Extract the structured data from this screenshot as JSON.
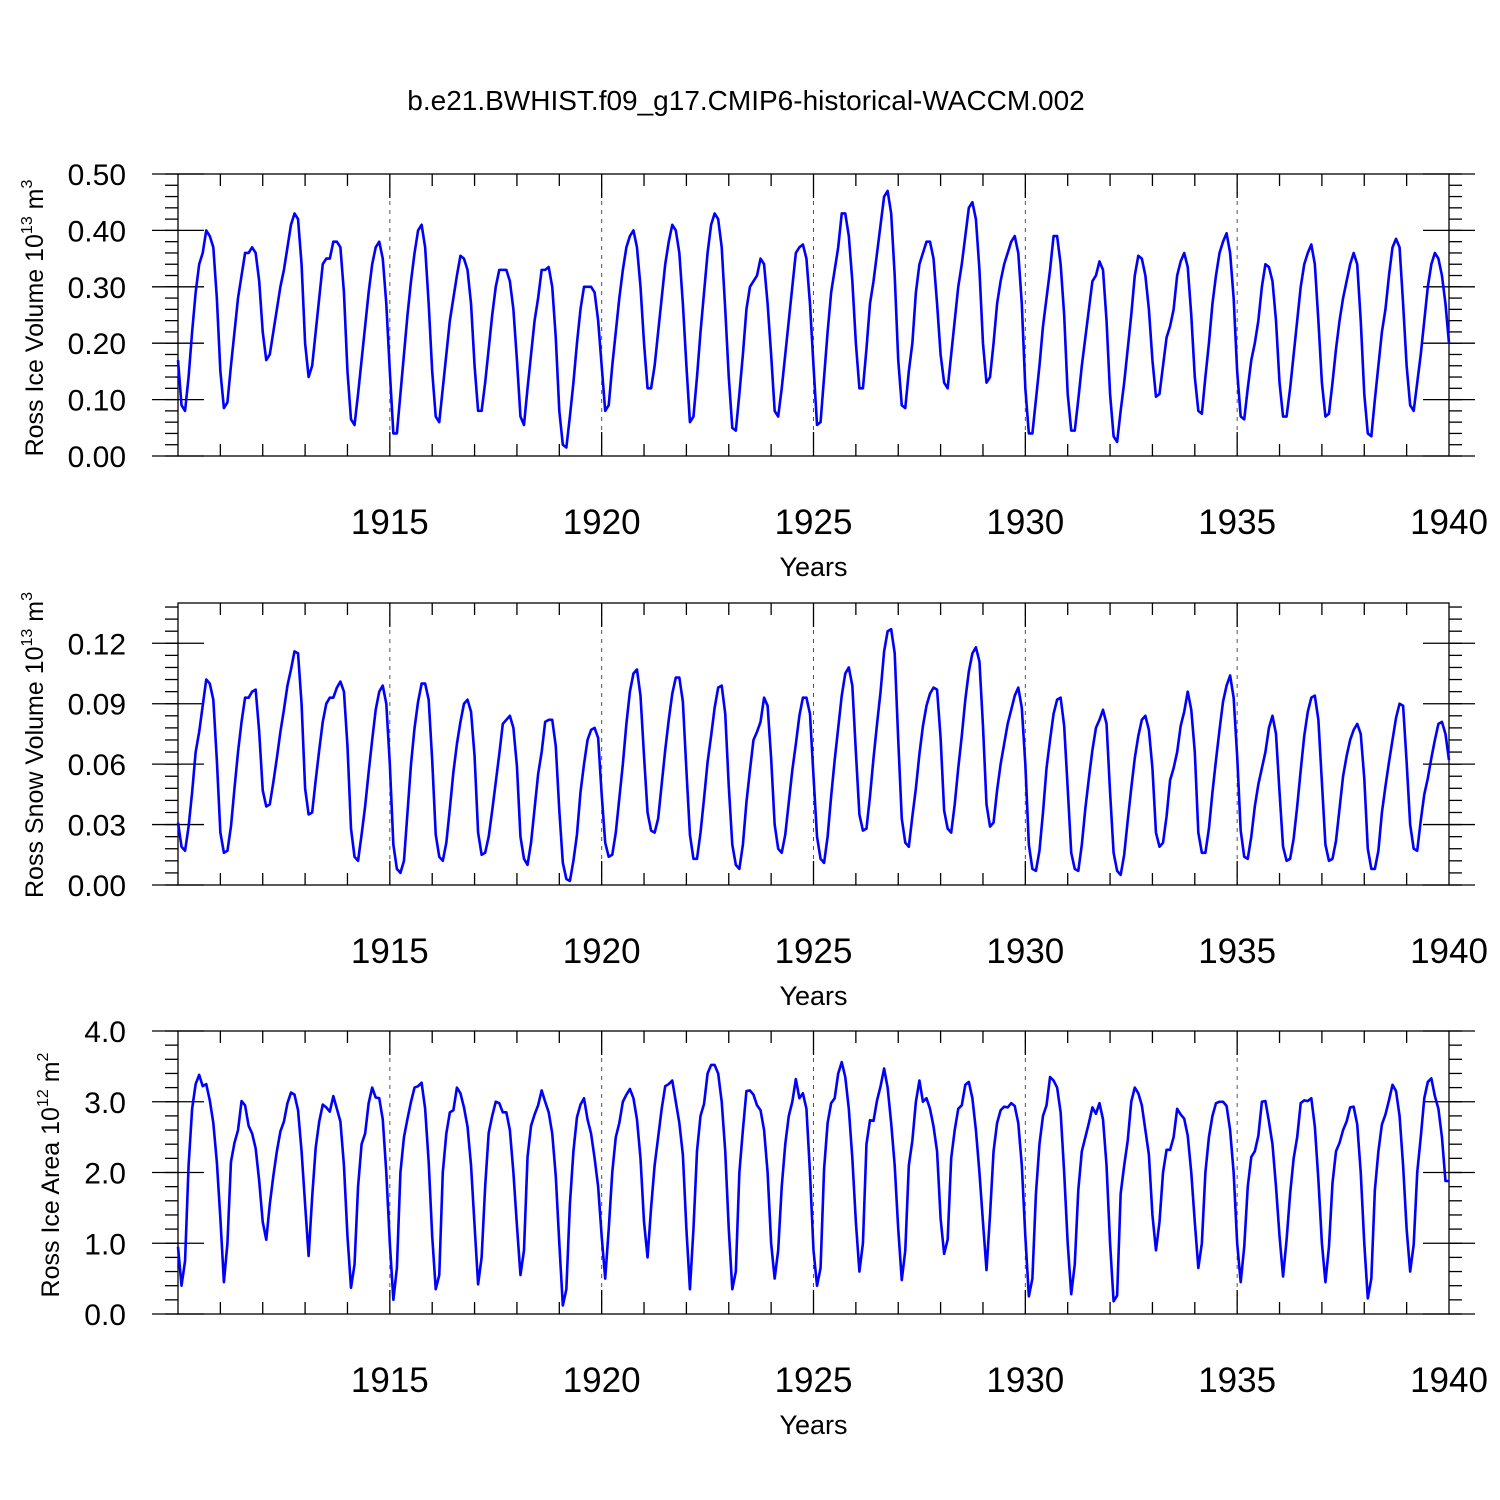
{
  "figure": {
    "title": "b.e21.BWHIST.f09_g17.CMIP6-historical-WACCM.002"
  },
  "chart_data": [
    {
      "type": "line",
      "name": "ross-ice-volume",
      "ylabel": "Ross Ice Volume 10",
      "ylabel_exp": "13",
      "ylabel_unit": "m",
      "ylabel_unit_exp": "3",
      "xlabel": "Years",
      "xlim": [
        1910,
        1940
      ],
      "ylim": [
        0,
        0.5
      ],
      "yticks": [
        "0.00",
        "0.10",
        "0.20",
        "0.30",
        "0.40",
        "0.50"
      ],
      "ytick_values": [
        0,
        0.1,
        0.2,
        0.3,
        0.4,
        0.5
      ],
      "xticks": [
        "1915",
        "1920",
        "1925",
        "1930",
        "1935",
        "1940"
      ],
      "xtick_values": [
        1915,
        1920,
        1925,
        1930,
        1935,
        1940
      ],
      "grid_x": [
        1915,
        1920,
        1925,
        1930,
        1935
      ],
      "color": "#0000ff",
      "start_year": 1910,
      "months_per_year": 12,
      "values": [
        0.17,
        0.09,
        0.08,
        0.14,
        0.22,
        0.29,
        0.34,
        0.36,
        0.4,
        0.39,
        0.37,
        0.28,
        0.15,
        0.085,
        0.095,
        0.16,
        0.22,
        0.28,
        0.32,
        0.36,
        0.36,
        0.37,
        0.36,
        0.31,
        0.22,
        0.17,
        0.18,
        0.22,
        0.26,
        0.3,
        0.33,
        0.37,
        0.41,
        0.43,
        0.42,
        0.34,
        0.2,
        0.14,
        0.16,
        0.22,
        0.28,
        0.34,
        0.35,
        0.35,
        0.38,
        0.38,
        0.37,
        0.29,
        0.15,
        0.065,
        0.055,
        0.11,
        0.17,
        0.23,
        0.29,
        0.34,
        0.37,
        0.38,
        0.35,
        0.27,
        0.15,
        0.04,
        0.04,
        0.11,
        0.18,
        0.25,
        0.31,
        0.36,
        0.4,
        0.41,
        0.37,
        0.27,
        0.15,
        0.07,
        0.06,
        0.12,
        0.18,
        0.24,
        0.28,
        0.32,
        0.355,
        0.35,
        0.33,
        0.27,
        0.16,
        0.08,
        0.08,
        0.13,
        0.19,
        0.25,
        0.3,
        0.33,
        0.33,
        0.33,
        0.31,
        0.26,
        0.17,
        0.07,
        0.055,
        0.12,
        0.18,
        0.24,
        0.28,
        0.33,
        0.33,
        0.335,
        0.3,
        0.21,
        0.08,
        0.02,
        0.015,
        0.07,
        0.13,
        0.2,
        0.26,
        0.3,
        0.3,
        0.3,
        0.29,
        0.24,
        0.16,
        0.08,
        0.09,
        0.16,
        0.22,
        0.28,
        0.33,
        0.37,
        0.39,
        0.4,
        0.37,
        0.3,
        0.2,
        0.12,
        0.12,
        0.16,
        0.22,
        0.28,
        0.34,
        0.38,
        0.41,
        0.4,
        0.36,
        0.27,
        0.16,
        0.06,
        0.07,
        0.14,
        0.22,
        0.29,
        0.36,
        0.41,
        0.43,
        0.42,
        0.37,
        0.26,
        0.14,
        0.05,
        0.045,
        0.11,
        0.18,
        0.26,
        0.3,
        0.31,
        0.32,
        0.35,
        0.34,
        0.27,
        0.18,
        0.08,
        0.07,
        0.12,
        0.18,
        0.24,
        0.3,
        0.36,
        0.37,
        0.375,
        0.35,
        0.27,
        0.16,
        0.055,
        0.06,
        0.14,
        0.22,
        0.29,
        0.33,
        0.37,
        0.43,
        0.43,
        0.39,
        0.31,
        0.2,
        0.12,
        0.12,
        0.19,
        0.27,
        0.31,
        0.36,
        0.41,
        0.46,
        0.47,
        0.43,
        0.32,
        0.17,
        0.09,
        0.085,
        0.15,
        0.2,
        0.29,
        0.34,
        0.36,
        0.38,
        0.38,
        0.35,
        0.27,
        0.18,
        0.13,
        0.12,
        0.18,
        0.24,
        0.3,
        0.34,
        0.39,
        0.44,
        0.45,
        0.42,
        0.33,
        0.2,
        0.13,
        0.14,
        0.2,
        0.27,
        0.31,
        0.34,
        0.36,
        0.38,
        0.39,
        0.36,
        0.27,
        0.12,
        0.04,
        0.04,
        0.1,
        0.16,
        0.23,
        0.28,
        0.33,
        0.39,
        0.39,
        0.34,
        0.25,
        0.11,
        0.045,
        0.045,
        0.1,
        0.16,
        0.21,
        0.26,
        0.31,
        0.32,
        0.345,
        0.33,
        0.24,
        0.11,
        0.035,
        0.025,
        0.08,
        0.13,
        0.19,
        0.25,
        0.32,
        0.355,
        0.35,
        0.32,
        0.26,
        0.17,
        0.105,
        0.11,
        0.16,
        0.21,
        0.23,
        0.26,
        0.32,
        0.345,
        0.36,
        0.335,
        0.25,
        0.14,
        0.08,
        0.075,
        0.14,
        0.2,
        0.27,
        0.32,
        0.36,
        0.38,
        0.395,
        0.36,
        0.28,
        0.15,
        0.07,
        0.065,
        0.12,
        0.17,
        0.2,
        0.24,
        0.3,
        0.34,
        0.335,
        0.31,
        0.24,
        0.13,
        0.07,
        0.07,
        0.12,
        0.18,
        0.24,
        0.3,
        0.34,
        0.36,
        0.375,
        0.34,
        0.24,
        0.13,
        0.07,
        0.075,
        0.13,
        0.19,
        0.24,
        0.28,
        0.31,
        0.34,
        0.36,
        0.34,
        0.24,
        0.11,
        0.04,
        0.035,
        0.1,
        0.16,
        0.22,
        0.26,
        0.32,
        0.37,
        0.385,
        0.37,
        0.27,
        0.16,
        0.09,
        0.08,
        0.13,
        0.18,
        0.24,
        0.3,
        0.34,
        0.36,
        0.35,
        0.32,
        0.27,
        0.2
      ]
    },
    {
      "type": "line",
      "name": "ross-snow-volume",
      "ylabel": "Ross Snow Volume 10",
      "ylabel_exp": "13",
      "ylabel_unit": "m",
      "ylabel_unit_exp": "3",
      "xlabel": "Years",
      "xlim": [
        1910,
        1940
      ],
      "ylim": [
        0,
        0.14
      ],
      "yticks": [
        "0.00",
        "0.03",
        "0.06",
        "0.09",
        "0.12"
      ],
      "ytick_values": [
        0,
        0.03,
        0.06,
        0.09,
        0.12
      ],
      "xticks": [
        "1915",
        "1920",
        "1925",
        "1930",
        "1935",
        "1940"
      ],
      "xtick_values": [
        1915,
        1920,
        1925,
        1930,
        1935,
        1940
      ],
      "grid_x": [
        1915,
        1920,
        1925,
        1930,
        1935
      ],
      "color": "#0000ff",
      "start_year": 1910,
      "months_per_year": 12,
      "values": [
        0.031,
        0.019,
        0.017,
        0.029,
        0.046,
        0.066,
        0.076,
        0.089,
        0.102,
        0.1,
        0.092,
        0.062,
        0.026,
        0.016,
        0.017,
        0.029,
        0.048,
        0.066,
        0.081,
        0.093,
        0.093,
        0.096,
        0.097,
        0.076,
        0.047,
        0.039,
        0.04,
        0.051,
        0.063,
        0.076,
        0.087,
        0.099,
        0.107,
        0.116,
        0.115,
        0.09,
        0.048,
        0.035,
        0.036,
        0.052,
        0.067,
        0.081,
        0.09,
        0.093,
        0.093,
        0.098,
        0.101,
        0.096,
        0.069,
        0.028,
        0.014,
        0.012,
        0.025,
        0.039,
        0.056,
        0.072,
        0.087,
        0.096,
        0.099,
        0.09,
        0.06,
        0.02,
        0.008,
        0.006,
        0.012,
        0.036,
        0.06,
        0.078,
        0.091,
        0.1,
        0.1,
        0.092,
        0.062,
        0.025,
        0.014,
        0.012,
        0.021,
        0.038,
        0.056,
        0.07,
        0.081,
        0.09,
        0.092,
        0.086,
        0.064,
        0.026,
        0.015,
        0.016,
        0.024,
        0.037,
        0.051,
        0.065,
        0.08,
        0.082,
        0.084,
        0.078,
        0.059,
        0.024,
        0.013,
        0.01,
        0.021,
        0.038,
        0.055,
        0.066,
        0.081,
        0.082,
        0.082,
        0.069,
        0.037,
        0.011,
        0.003,
        0.002,
        0.012,
        0.025,
        0.046,
        0.06,
        0.072,
        0.077,
        0.078,
        0.073,
        0.045,
        0.021,
        0.014,
        0.015,
        0.026,
        0.043,
        0.06,
        0.08,
        0.096,
        0.105,
        0.107,
        0.094,
        0.064,
        0.036,
        0.027,
        0.026,
        0.033,
        0.05,
        0.067,
        0.082,
        0.095,
        0.103,
        0.103,
        0.091,
        0.057,
        0.025,
        0.013,
        0.013,
        0.026,
        0.043,
        0.061,
        0.074,
        0.088,
        0.098,
        0.099,
        0.085,
        0.049,
        0.02,
        0.01,
        0.008,
        0.02,
        0.041,
        0.057,
        0.072,
        0.076,
        0.081,
        0.093,
        0.089,
        0.063,
        0.03,
        0.018,
        0.016,
        0.025,
        0.041,
        0.057,
        0.07,
        0.084,
        0.093,
        0.093,
        0.085,
        0.054,
        0.024,
        0.013,
        0.011,
        0.024,
        0.044,
        0.062,
        0.078,
        0.094,
        0.105,
        0.108,
        0.099,
        0.066,
        0.035,
        0.027,
        0.028,
        0.044,
        0.063,
        0.08,
        0.096,
        0.116,
        0.126,
        0.127,
        0.115,
        0.072,
        0.033,
        0.021,
        0.019,
        0.034,
        0.048,
        0.065,
        0.079,
        0.089,
        0.095,
        0.098,
        0.097,
        0.073,
        0.037,
        0.028,
        0.026,
        0.04,
        0.058,
        0.074,
        0.092,
        0.106,
        0.115,
        0.118,
        0.111,
        0.079,
        0.04,
        0.029,
        0.031,
        0.047,
        0.06,
        0.07,
        0.08,
        0.087,
        0.094,
        0.098,
        0.088,
        0.06,
        0.02,
        0.008,
        0.007,
        0.017,
        0.036,
        0.058,
        0.072,
        0.085,
        0.092,
        0.093,
        0.079,
        0.048,
        0.016,
        0.008,
        0.007,
        0.02,
        0.038,
        0.053,
        0.067,
        0.078,
        0.082,
        0.087,
        0.08,
        0.046,
        0.016,
        0.007,
        0.005,
        0.015,
        0.032,
        0.048,
        0.063,
        0.074,
        0.082,
        0.084,
        0.077,
        0.058,
        0.026,
        0.019,
        0.021,
        0.034,
        0.052,
        0.058,
        0.066,
        0.079,
        0.086,
        0.096,
        0.087,
        0.066,
        0.026,
        0.016,
        0.016,
        0.028,
        0.046,
        0.062,
        0.077,
        0.091,
        0.099,
        0.104,
        0.093,
        0.064,
        0.027,
        0.014,
        0.013,
        0.024,
        0.039,
        0.05,
        0.058,
        0.066,
        0.078,
        0.084,
        0.075,
        0.046,
        0.019,
        0.012,
        0.013,
        0.023,
        0.039,
        0.057,
        0.074,
        0.086,
        0.093,
        0.094,
        0.082,
        0.051,
        0.02,
        0.012,
        0.013,
        0.022,
        0.038,
        0.054,
        0.064,
        0.072,
        0.077,
        0.08,
        0.075,
        0.053,
        0.018,
        0.008,
        0.008,
        0.017,
        0.036,
        0.049,
        0.061,
        0.072,
        0.083,
        0.09,
        0.089,
        0.061,
        0.03,
        0.018,
        0.017,
        0.032,
        0.045,
        0.053,
        0.063,
        0.072,
        0.08,
        0.081,
        0.075,
        0.062
      ]
    },
    {
      "type": "line",
      "name": "ross-ice-area",
      "ylabel": "Ross Ice Area 10",
      "ylabel_exp": "12",
      "ylabel_unit": "m",
      "ylabel_unit_exp": "2",
      "xlabel": "Years",
      "xlim": [
        1910,
        1940
      ],
      "ylim": [
        0,
        4
      ],
      "yticks": [
        "0.0",
        "1.0",
        "2.0",
        "3.0",
        "4.0"
      ],
      "ytick_values": [
        0,
        1,
        2,
        3,
        4
      ],
      "xticks": [
        "1915",
        "1920",
        "1925",
        "1930",
        "1935",
        "1940"
      ],
      "xtick_values": [
        1915,
        1920,
        1925,
        1930,
        1935,
        1940
      ],
      "grid_x": [
        1915,
        1920,
        1925,
        1930,
        1935
      ],
      "color": "#0000ff",
      "start_year": 1910,
      "months_per_year": 12,
      "values": [
        0.95,
        0.4,
        0.75,
        2.1,
        2.9,
        3.25,
        3.38,
        3.22,
        3.25,
        3.02,
        2.7,
        2.15,
        1.35,
        0.45,
        1.0,
        2.15,
        2.42,
        2.6,
        3.01,
        2.95,
        2.66,
        2.55,
        2.34,
        1.88,
        1.3,
        1.05,
        1.55,
        1.95,
        2.3,
        2.58,
        2.72,
        2.98,
        3.13,
        3.1,
        2.88,
        2.3,
        1.55,
        0.82,
        1.65,
        2.35,
        2.72,
        2.96,
        2.92,
        2.86,
        3.08,
        2.9,
        2.72,
        2.1,
        1.1,
        0.37,
        0.7,
        1.8,
        2.4,
        2.55,
        2.98,
        3.2,
        3.06,
        3.05,
        2.75,
        2.0,
        1.0,
        0.2,
        0.65,
        2.0,
        2.5,
        2.76,
        3.0,
        3.2,
        3.22,
        3.27,
        2.9,
        2.15,
        1.1,
        0.35,
        0.55,
        2.0,
        2.55,
        2.85,
        2.88,
        3.2,
        3.12,
        2.92,
        2.65,
        2.1,
        1.25,
        0.42,
        0.8,
        1.8,
        2.56,
        2.8,
        3.0,
        2.98,
        2.85,
        2.85,
        2.6,
        2.0,
        1.25,
        0.55,
        0.9,
        2.22,
        2.66,
        2.82,
        2.95,
        3.16,
        3.0,
        2.85,
        2.55,
        1.95,
        1.0,
        0.12,
        0.35,
        1.55,
        2.3,
        2.78,
        2.96,
        3.05,
        2.75,
        2.55,
        2.2,
        1.8,
        1.1,
        0.5,
        1.2,
        2.0,
        2.5,
        2.7,
        3.0,
        3.1,
        3.18,
        3.05,
        2.75,
        2.2,
        1.3,
        0.8,
        1.5,
        2.1,
        2.5,
        2.9,
        3.22,
        3.25,
        3.3,
        3.0,
        2.7,
        2.25,
        1.2,
        0.35,
        1.2,
        2.3,
        2.8,
        2.97,
        3.4,
        3.52,
        3.52,
        3.4,
        3.0,
        2.3,
        1.2,
        0.35,
        0.6,
        2.0,
        2.6,
        3.15,
        3.16,
        3.1,
        2.95,
        2.88,
        2.6,
        2.0,
        1.0,
        0.5,
        0.9,
        1.8,
        2.4,
        2.8,
        3.0,
        3.32,
        3.05,
        3.12,
        2.9,
        2.0,
        0.9,
        0.4,
        0.65,
        2.05,
        2.7,
        2.98,
        3.05,
        3.4,
        3.56,
        3.35,
        2.9,
        2.2,
        1.3,
        0.6,
        1.0,
        2.4,
        2.74,
        2.73,
        3.02,
        3.22,
        3.47,
        3.2,
        2.7,
        2.1,
        1.2,
        0.48,
        0.9,
        2.1,
        2.45,
        3.0,
        3.3,
        3.0,
        3.05,
        2.9,
        2.65,
        2.3,
        1.35,
        0.85,
        1.05,
        2.2,
        2.6,
        2.9,
        2.95,
        3.24,
        3.28,
        3.05,
        2.6,
        2.0,
        1.3,
        0.62,
        1.4,
        2.3,
        2.7,
        2.88,
        2.93,
        2.92,
        2.98,
        2.94,
        2.7,
        2.1,
        1.1,
        0.25,
        0.5,
        1.7,
        2.4,
        2.8,
        2.95,
        3.35,
        3.3,
        3.2,
        2.85,
        2.0,
        1.0,
        0.28,
        0.7,
        1.75,
        2.3,
        2.5,
        2.7,
        2.92,
        2.83,
        2.98,
        2.75,
        2.1,
        1.0,
        0.18,
        0.26,
        1.7,
        2.1,
        2.45,
        3.0,
        3.2,
        3.12,
        2.95,
        2.6,
        2.25,
        1.4,
        0.9,
        1.3,
        2.0,
        2.32,
        2.32,
        2.5,
        2.9,
        2.82,
        2.76,
        2.52,
        2.0,
        1.3,
        0.65,
        1.0,
        2.0,
        2.5,
        2.8,
        2.98,
        3.0,
        3.0,
        2.94,
        2.6,
        2.0,
        1.0,
        0.45,
        0.95,
        1.8,
        2.22,
        2.3,
        2.52,
        3.0,
        3.01,
        2.72,
        2.4,
        1.8,
        1.1,
        0.53,
        1.05,
        1.7,
        2.2,
        2.5,
        2.98,
        3.02,
        3.01,
        3.05,
        2.65,
        1.9,
        1.0,
        0.45,
        0.95,
        1.85,
        2.3,
        2.42,
        2.6,
        2.72,
        2.92,
        2.93,
        2.68,
        2.0,
        1.0,
        0.22,
        0.5,
        1.75,
        2.3,
        2.68,
        2.82,
        3.02,
        3.24,
        3.15,
        2.8,
        2.1,
        1.2,
        0.6,
        0.98,
        2.0,
        2.5,
        3.05,
        3.28,
        3.33,
        3.08,
        2.9,
        2.5,
        1.88,
        1.88
      ]
    }
  ]
}
